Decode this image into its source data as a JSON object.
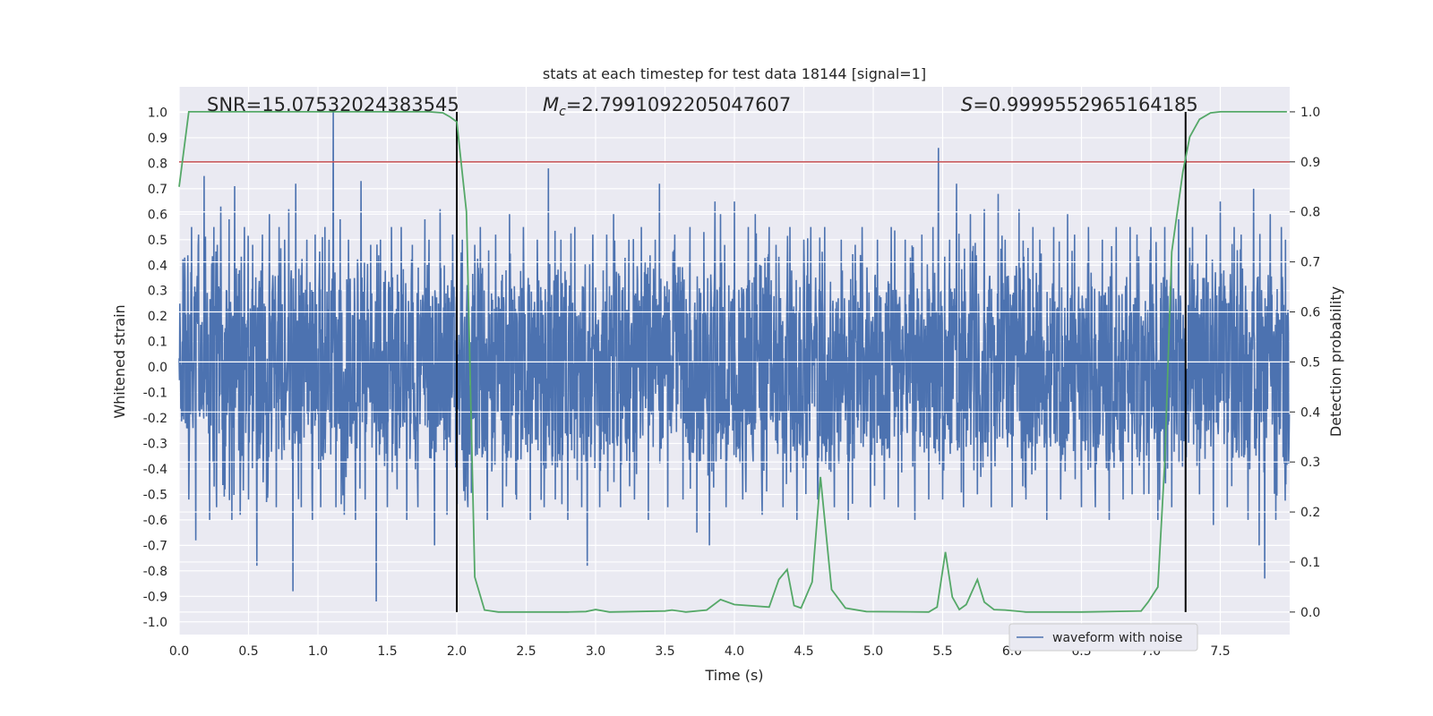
{
  "chart_data": {
    "type": "line",
    "title": "stats at each timestep for test data 18144 [signal=1]",
    "xlabel": "Time (s)",
    "ylabel": "Whitened strain",
    "y2label": "Detection probability",
    "xlim": [
      0.0,
      8.0
    ],
    "ylim": [
      -1.05,
      1.1
    ],
    "y2lim": [
      -0.045,
      1.05
    ],
    "xticks": [
      "0.0",
      "0.5",
      "1.0",
      "1.5",
      "2.0",
      "2.5",
      "3.0",
      "3.5",
      "4.0",
      "4.5",
      "5.0",
      "5.5",
      "6.0",
      "6.5",
      "7.0",
      "7.5"
    ],
    "yticks": [
      "-1.0",
      "-0.9",
      "-0.8",
      "-0.7",
      "-0.6",
      "-0.5",
      "-0.4",
      "-0.3",
      "-0.2",
      "-0.1",
      "0.0",
      "0.1",
      "0.2",
      "0.3",
      "0.4",
      "0.5",
      "0.6",
      "0.7",
      "0.8",
      "0.9",
      "1.0"
    ],
    "y2ticks": [
      "0.0",
      "0.1",
      "0.2",
      "0.3",
      "0.4",
      "0.5",
      "0.6",
      "0.7",
      "0.8",
      "0.9",
      "1.0"
    ],
    "grid": true,
    "legend_position": "lower-right",
    "annotations": {
      "snr": "SNR=15.07532024383545",
      "mc_symbol": "M",
      "mc_sub": "c",
      "mc_value": "=2.7991092205047607",
      "s_symbol": "S",
      "s_value": "=0.9999552965164185"
    },
    "series": [
      {
        "name": "waveform with noise",
        "color": "#4c72b0",
        "axis": "left",
        "envelope_typical": 0.42,
        "peaks": [
          [
            0.04,
            0.43
          ],
          [
            0.07,
            -0.52
          ],
          [
            0.09,
            0.55
          ],
          [
            0.12,
            -0.68
          ],
          [
            0.14,
            0.52
          ],
          [
            0.18,
            0.75
          ],
          [
            0.22,
            -0.6
          ],
          [
            0.25,
            0.55
          ],
          [
            0.27,
            -0.55
          ],
          [
            0.3,
            0.63
          ],
          [
            0.33,
            -0.48
          ],
          [
            0.36,
            0.58
          ],
          [
            0.38,
            -0.6
          ],
          [
            0.4,
            0.71
          ],
          [
            0.44,
            -0.58
          ],
          [
            0.47,
            0.55
          ],
          [
            0.5,
            -0.52
          ],
          [
            0.53,
            0.48
          ],
          [
            0.56,
            -0.78
          ],
          [
            0.6,
            0.52
          ],
          [
            0.63,
            -0.53
          ],
          [
            0.65,
            0.6
          ],
          [
            0.7,
            -0.55
          ],
          [
            0.72,
            0.55
          ],
          [
            0.76,
            0.5
          ],
          [
            0.79,
            0.62
          ],
          [
            0.82,
            -0.88
          ],
          [
            0.84,
            0.72
          ],
          [
            0.88,
            -0.55
          ],
          [
            0.92,
            0.5
          ],
          [
            0.96,
            -0.6
          ],
          [
            0.98,
            0.52
          ],
          [
            1.02,
            -0.55
          ],
          [
            1.05,
            0.55
          ],
          [
            1.08,
            0.5
          ],
          [
            1.11,
            1.0
          ],
          [
            1.13,
            -0.55
          ],
          [
            1.16,
            0.58
          ],
          [
            1.19,
            -0.58
          ],
          [
            1.22,
            0.5
          ],
          [
            1.27,
            -0.6
          ],
          [
            1.31,
            0.73
          ],
          [
            1.34,
            -0.52
          ],
          [
            1.38,
            0.48
          ],
          [
            1.42,
            -0.92
          ],
          [
            1.45,
            0.5
          ],
          [
            1.5,
            -0.55
          ],
          [
            1.53,
            0.55
          ],
          [
            1.57,
            -0.48
          ],
          [
            1.6,
            0.55
          ],
          [
            1.64,
            -0.6
          ],
          [
            1.68,
            0.48
          ],
          [
            1.72,
            -0.55
          ],
          [
            1.77,
            0.58
          ],
          [
            1.8,
            0.5
          ],
          [
            1.84,
            -0.7
          ],
          [
            1.88,
            0.62
          ],
          [
            1.93,
            -0.58
          ],
          [
            1.97,
            0.52
          ],
          [
            2.0,
            -0.45
          ],
          [
            2.04,
            0.5
          ],
          [
            2.08,
            -0.55
          ],
          [
            2.13,
            0.48
          ],
          [
            2.17,
            0.55
          ],
          [
            2.22,
            -0.6
          ],
          [
            2.28,
            0.52
          ],
          [
            2.33,
            -0.55
          ],
          [
            2.38,
            0.6
          ],
          [
            2.43,
            -0.52
          ],
          [
            2.48,
            0.55
          ],
          [
            2.53,
            -0.6
          ],
          [
            2.58,
            0.5
          ],
          [
            2.63,
            -0.55
          ],
          [
            2.66,
            0.78
          ],
          [
            2.71,
            -0.52
          ],
          [
            2.75,
            0.5
          ],
          [
            2.8,
            -0.6
          ],
          [
            2.85,
            0.55
          ],
          [
            2.9,
            -0.55
          ],
          [
            2.94,
            -0.78
          ],
          [
            2.98,
            0.52
          ],
          [
            3.03,
            -0.55
          ],
          [
            3.08,
            0.52
          ],
          [
            3.13,
            0.6
          ],
          [
            3.18,
            -0.55
          ],
          [
            3.24,
            0.5
          ],
          [
            3.28,
            -0.52
          ],
          [
            3.33,
            0.55
          ],
          [
            3.38,
            -0.6
          ],
          [
            3.43,
            0.5
          ],
          [
            3.46,
            0.72
          ],
          [
            3.52,
            -0.55
          ],
          [
            3.57,
            0.52
          ],
          [
            3.63,
            -0.52
          ],
          [
            3.68,
            0.55
          ],
          [
            3.73,
            -0.65
          ],
          [
            3.78,
            0.53
          ],
          [
            3.82,
            -0.7
          ],
          [
            3.86,
            0.65
          ],
          [
            3.9,
            0.6
          ],
          [
            3.94,
            -0.55
          ],
          [
            4.0,
            0.65
          ],
          [
            4.06,
            -0.52
          ],
          [
            4.1,
            0.55
          ],
          [
            4.15,
            0.6
          ],
          [
            4.2,
            -0.58
          ],
          [
            4.25,
            0.55
          ],
          [
            4.3,
            0.48
          ],
          [
            4.35,
            -0.55
          ],
          [
            4.4,
            0.55
          ],
          [
            4.45,
            -0.6
          ],
          [
            4.5,
            0.5
          ],
          [
            4.55,
            0.55
          ],
          [
            4.6,
            -0.52
          ],
          [
            4.65,
            0.55
          ],
          [
            4.72,
            -0.55
          ],
          [
            4.77,
            0.5
          ],
          [
            4.82,
            -0.6
          ],
          [
            4.87,
            0.48
          ],
          [
            4.92,
            0.55
          ],
          [
            4.98,
            -0.55
          ],
          [
            5.03,
            0.5
          ],
          [
            5.08,
            -0.52
          ],
          [
            5.13,
            0.55
          ],
          [
            5.18,
            -0.55
          ],
          [
            5.23,
            0.5
          ],
          [
            5.3,
            -0.6
          ],
          [
            5.35,
            0.52
          ],
          [
            5.4,
            -0.52
          ],
          [
            5.43,
            0.55
          ],
          [
            5.47,
            0.86
          ],
          [
            5.5,
            -0.52
          ],
          [
            5.55,
            0.5
          ],
          [
            5.6,
            0.72
          ],
          [
            5.65,
            -0.55
          ],
          [
            5.7,
            0.6
          ],
          [
            5.75,
            -0.5
          ],
          [
            5.8,
            0.62
          ],
          [
            5.85,
            -0.55
          ],
          [
            5.9,
            0.68
          ],
          [
            5.95,
            0.5
          ],
          [
            6.0,
            -0.55
          ],
          [
            6.05,
            0.62
          ],
          [
            6.1,
            -0.52
          ],
          [
            6.15,
            0.55
          ],
          [
            6.2,
            0.5
          ],
          [
            6.25,
            -0.6
          ],
          [
            6.3,
            0.55
          ],
          [
            6.35,
            -0.52
          ],
          [
            6.4,
            0.6
          ],
          [
            6.45,
            0.52
          ],
          [
            6.5,
            -0.55
          ],
          [
            6.55,
            0.55
          ],
          [
            6.6,
            -0.55
          ],
          [
            6.65,
            0.5
          ],
          [
            6.7,
            -0.6
          ],
          [
            6.75,
            0.55
          ],
          [
            6.8,
            -0.52
          ],
          [
            6.85,
            0.55
          ],
          [
            6.9,
            0.52
          ],
          [
            6.95,
            -0.5
          ],
          [
            7.0,
            0.55
          ],
          [
            7.05,
            -0.6
          ],
          [
            7.1,
            0.55
          ],
          [
            7.15,
            -0.55
          ],
          [
            7.2,
            0.58
          ],
          [
            7.25,
            -0.55
          ],
          [
            7.3,
            0.55
          ],
          [
            7.35,
            -0.5
          ],
          [
            7.4,
            0.52
          ],
          [
            7.45,
            -0.62
          ],
          [
            7.5,
            0.65
          ],
          [
            7.55,
            -0.55
          ],
          [
            7.6,
            0.55
          ],
          [
            7.65,
            0.52
          ],
          [
            7.7,
            -0.6
          ],
          [
            7.74,
            0.7
          ],
          [
            7.78,
            -0.7
          ],
          [
            7.82,
            -0.83
          ],
          [
            7.86,
            0.6
          ],
          [
            7.9,
            -0.6
          ],
          [
            7.94,
            0.55
          ],
          [
            7.97,
            0.5
          ]
        ]
      },
      {
        "name": "",
        "color": "#55a868",
        "axis": "right",
        "x": [
          0.0,
          0.07,
          0.1,
          1.8,
          1.9,
          1.95,
          2.0,
          2.07,
          2.13,
          2.2,
          2.3,
          2.8,
          2.93,
          3.0,
          3.1,
          3.5,
          3.55,
          3.65,
          3.8,
          3.9,
          4.0,
          4.25,
          4.32,
          4.38,
          4.43,
          4.48,
          4.56,
          4.62,
          4.7,
          4.8,
          4.95,
          5.4,
          5.46,
          5.52,
          5.57,
          5.62,
          5.67,
          5.75,
          5.8,
          5.87,
          5.95,
          6.1,
          6.5,
          6.93,
          6.98,
          7.05,
          7.1,
          7.15,
          7.23,
          7.28,
          7.35,
          7.43,
          7.5,
          7.65,
          7.98
        ],
        "y": [
          0.85,
          1.0,
          1.0,
          1.0,
          0.998,
          0.99,
          0.98,
          0.8,
          0.07,
          0.004,
          0.0,
          0.0,
          0.001,
          0.005,
          0.0,
          0.002,
          0.004,
          0.0,
          0.004,
          0.025,
          0.015,
          0.01,
          0.065,
          0.085,
          0.013,
          0.008,
          0.06,
          0.27,
          0.045,
          0.008,
          0.001,
          0.0,
          0.01,
          0.12,
          0.03,
          0.005,
          0.015,
          0.065,
          0.02,
          0.005,
          0.004,
          0.0,
          0.0,
          0.002,
          0.02,
          0.05,
          0.3,
          0.72,
          0.88,
          0.95,
          0.985,
          0.998,
          1.0,
          1.0,
          1.0
        ]
      }
    ],
    "hlines": [
      {
        "y": 0.9,
        "axis": "right",
        "color": "#c44e52"
      }
    ],
    "vlines": [
      {
        "x": 2.0,
        "color": "#000000",
        "y2_from": 0.0,
        "y2_to": 1.0
      },
      {
        "x": 7.25,
        "color": "#000000",
        "y2_from": 0.0,
        "y2_to": 1.0
      }
    ]
  }
}
